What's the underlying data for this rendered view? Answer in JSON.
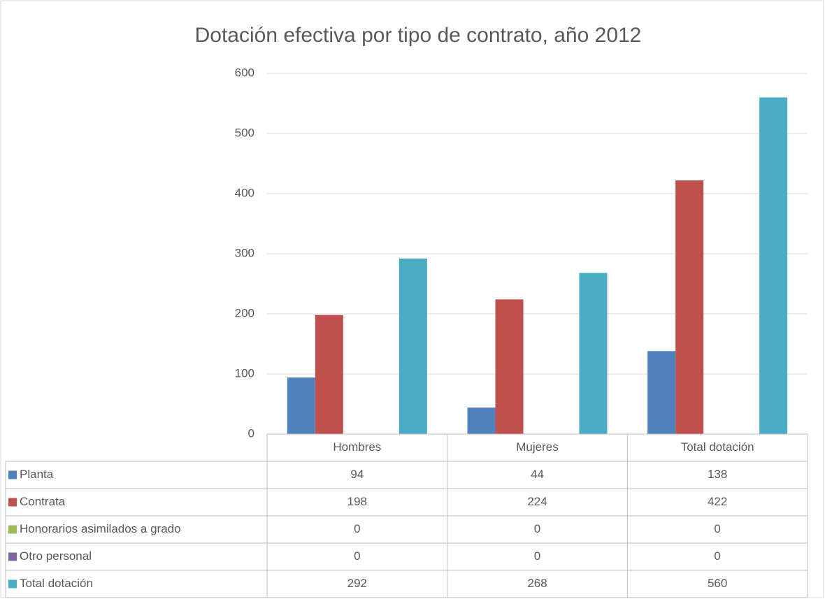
{
  "chart_data": {
    "type": "bar",
    "title": "Dotación efectiva por tipo de contrato, año 2012",
    "categories": [
      "Hombres",
      "Mujeres",
      "Total dotación"
    ],
    "series": [
      {
        "name": "Planta",
        "color": "#4f81bd",
        "values": [
          94,
          44,
          138
        ]
      },
      {
        "name": "Contrata",
        "color": "#c0504d",
        "values": [
          198,
          224,
          422
        ]
      },
      {
        "name": "Honorarios asimilados a grado",
        "color": "#9bbb59",
        "values": [
          0,
          0,
          0
        ]
      },
      {
        "name": "Otro personal",
        "color": "#8064a2",
        "values": [
          0,
          0,
          0
        ]
      },
      {
        "name": "Total dotación",
        "color": "#4bacc6",
        "values": [
          292,
          268,
          560
        ]
      }
    ],
    "ylim": [
      0,
      600
    ],
    "yticks": [
      0,
      100,
      200,
      300,
      400,
      500,
      600
    ],
    "grid": true,
    "data_table": true
  }
}
